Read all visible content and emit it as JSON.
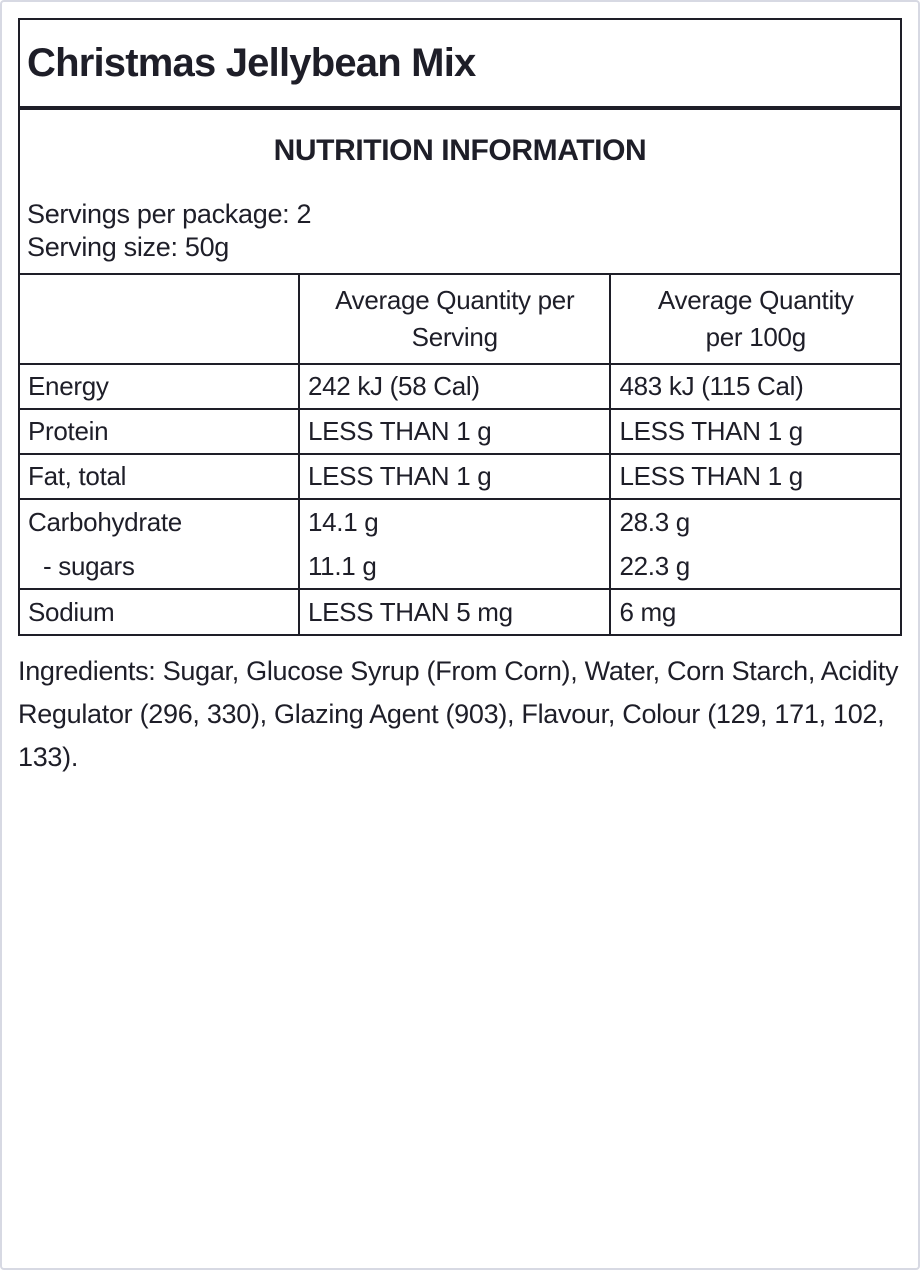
{
  "label": {
    "product_title": "Christmas Jellybean Mix",
    "section_heading": "NUTRITION INFORMATION",
    "servings_per_package": "Servings per package: 2",
    "serving_size": "Serving size: 50g"
  },
  "table": {
    "headers": {
      "item": "",
      "per_serving": "Average Quantity per Serving",
      "per_100g": "Average Quantity per 100g"
    },
    "rows": [
      {
        "label": "Energy",
        "per_serving": "242 kJ (58 Cal)",
        "per_100g": "483 kJ (115 Cal)"
      },
      {
        "label": "Protein",
        "per_serving": "LESS THAN 1 g",
        "per_100g": "LESS THAN 1 g"
      },
      {
        "label": "Fat, total",
        "per_serving": "LESS THAN 1 g",
        "per_100g": "LESS THAN 1 g"
      },
      {
        "label": "Carbohydrate",
        "per_serving": "14.1 g",
        "per_100g": "28.3 g",
        "sub": {
          "label": "- sugars",
          "per_serving": "11.1 g",
          "per_100g": "22.3 g"
        }
      },
      {
        "label": "Sodium",
        "per_serving": "LESS THAN 5 mg",
        "per_100g": "6 mg"
      }
    ]
  },
  "ingredients_text": "Ingredients: Sugar, Glucose Syrup (From Corn), Water, Corn Starch, Acidity Regulator (296, 330), Glazing Agent (903), Flavour, Colour (129, 171, 102, 133).",
  "colors": {
    "ink": "#1e1e28",
    "page_border": "#d7d9e3",
    "background": "#ffffff"
  }
}
